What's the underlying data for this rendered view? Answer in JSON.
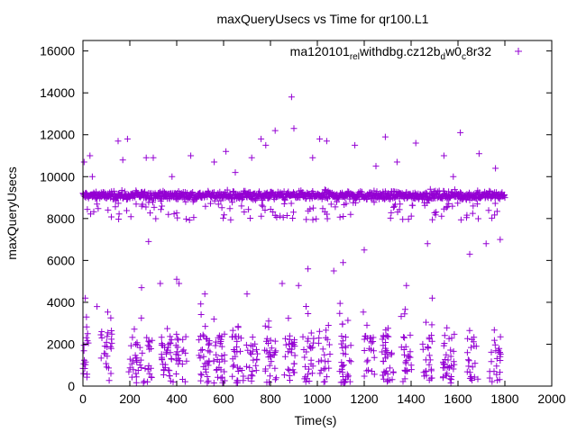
{
  "chart_data": {
    "type": "scatter",
    "title": "maxQueryUsecs vs Time for qr100.L1",
    "xlabel": "Time(s)",
    "ylabel": "maxQueryUsecs",
    "xlim": [
      0,
      2000
    ],
    "ylim": [
      0,
      16500
    ],
    "xticks": [
      0,
      200,
      400,
      600,
      800,
      1000,
      1200,
      1400,
      1600,
      1800,
      2000
    ],
    "yticks": [
      0,
      2000,
      4000,
      6000,
      8000,
      10000,
      12000,
      14000,
      16000
    ],
    "grid": false,
    "legend_position": "top-right",
    "series": [
      {
        "name": "ma120101_rel_withdbg.cz12b_dw0_c8r32",
        "legend_parts": [
          {
            "text": "ma120101",
            "sub": false
          },
          {
            "text": "rel",
            "sub": true
          },
          {
            "text": "w",
            "sub": false
          },
          {
            "text": "ithdbg.cz12b",
            "sub": false
          },
          {
            "text": "d",
            "sub": true
          },
          {
            "text": "w0",
            "sub": false
          },
          {
            "text": "c",
            "sub": true
          },
          {
            "text": "8r32",
            "sub": false
          }
        ],
        "color": "#9400d3",
        "marker": "plus",
        "x_range": [
          0,
          1800
        ],
        "main_band": {
          "center": 9100,
          "spread": 350
        },
        "points": [
          [
            5,
            10700
          ],
          [
            10,
            4200
          ],
          [
            15,
            3300
          ],
          [
            20,
            2500
          ],
          [
            30,
            11000
          ],
          [
            40,
            10000
          ],
          [
            60,
            3800
          ],
          [
            80,
            2600
          ],
          [
            150,
            11700
          ],
          [
            170,
            10800
          ],
          [
            190,
            11800
          ],
          [
            250,
            4700
          ],
          [
            270,
            10900
          ],
          [
            280,
            6900
          ],
          [
            300,
            10900
          ],
          [
            330,
            4900
          ],
          [
            380,
            10000
          ],
          [
            400,
            5100
          ],
          [
            410,
            4900
          ],
          [
            460,
            11000
          ],
          [
            520,
            4400
          ],
          [
            560,
            10700
          ],
          [
            610,
            11200
          ],
          [
            650,
            10200
          ],
          [
            700,
            4400
          ],
          [
            720,
            10900
          ],
          [
            760,
            11800
          ],
          [
            780,
            11500
          ],
          [
            820,
            12200
          ],
          [
            850,
            4900
          ],
          [
            890,
            13800
          ],
          [
            900,
            12300
          ],
          [
            920,
            4800
          ],
          [
            960,
            5600
          ],
          [
            980,
            10900
          ],
          [
            1010,
            11800
          ],
          [
            1040,
            11700
          ],
          [
            1070,
            5500
          ],
          [
            1110,
            5900
          ],
          [
            1160,
            11500
          ],
          [
            1200,
            6500
          ],
          [
            1250,
            10500
          ],
          [
            1290,
            11900
          ],
          [
            1340,
            10700
          ],
          [
            1380,
            4800
          ],
          [
            1420,
            11600
          ],
          [
            1470,
            6800
          ],
          [
            1490,
            4200
          ],
          [
            1540,
            11000
          ],
          [
            1580,
            10000
          ],
          [
            1610,
            12100
          ],
          [
            1650,
            6300
          ],
          [
            1690,
            11100
          ],
          [
            1720,
            6800
          ],
          [
            1760,
            10400
          ],
          [
            1780,
            7000
          ]
        ],
        "low_clusters": [
          0,
          100,
          220,
          270,
          360,
          420,
          520,
          580,
          660,
          720,
          800,
          880,
          960,
          1030,
          1120,
          1220,
          1300,
          1380,
          1470,
          1560,
          1660,
          1760
        ]
      }
    ]
  }
}
